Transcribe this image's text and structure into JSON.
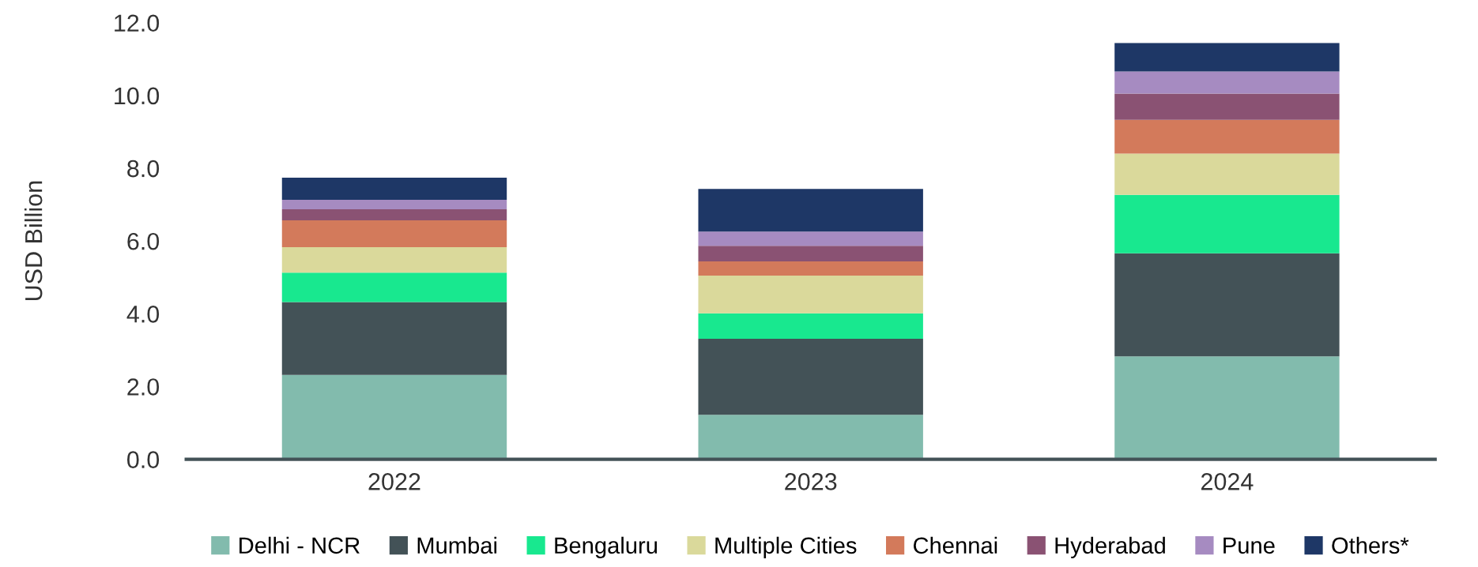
{
  "chart_data": {
    "type": "bar",
    "stacked": true,
    "ylabel": "USD Billion",
    "categories": [
      "2022",
      "2023",
      "2024"
    ],
    "series": [
      {
        "name": "Delhi - NCR",
        "color": "#82bbad",
        "values": [
          2.32,
          1.22,
          2.83
        ]
      },
      {
        "name": "Mumbai",
        "color": "#435257",
        "values": [
          2.0,
          2.09,
          2.83
        ]
      },
      {
        "name": "Bengaluru",
        "color": "#18e88f",
        "values": [
          0.81,
          0.7,
          1.61
        ]
      },
      {
        "name": "Multiple Cities",
        "color": "#dad99b",
        "values": [
          0.7,
          1.04,
          1.13
        ]
      },
      {
        "name": "Chennai",
        "color": "#d37a5b",
        "values": [
          0.74,
          0.39,
          0.93
        ]
      },
      {
        "name": "Hyderabad",
        "color": "#8a5273",
        "values": [
          0.3,
          0.43,
          0.72
        ]
      },
      {
        "name": "Pune",
        "color": "#a68bc1",
        "values": [
          0.26,
          0.39,
          0.61
        ]
      },
      {
        "name": "Others*",
        "color": "#1e3766",
        "values": [
          0.61,
          1.17,
          0.78
        ]
      }
    ],
    "ylim": [
      0,
      12
    ],
    "yticks": [
      {
        "value": 0,
        "label": "0.0"
      },
      {
        "value": 2,
        "label": "2.0"
      },
      {
        "value": 4,
        "label": "4.0"
      },
      {
        "value": 6,
        "label": "6.0"
      },
      {
        "value": 8,
        "label": "8.0"
      },
      {
        "value": 10,
        "label": "10.0"
      },
      {
        "value": 12,
        "label": "12.0"
      }
    ],
    "grid": false,
    "legend": "bottom"
  }
}
